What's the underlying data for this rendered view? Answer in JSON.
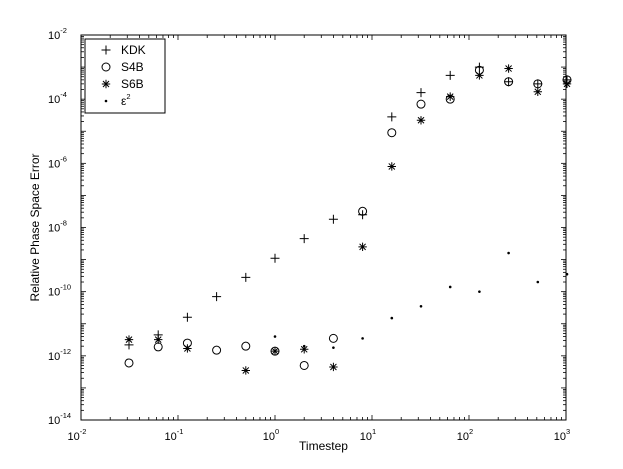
{
  "chart_data": {
    "type": "scatter",
    "title": "",
    "xlabel": "Timestep",
    "ylabel": "Relative Phase Space Error",
    "x_scale": "log",
    "y_scale": "log",
    "xlim": [
      0.01,
      1000
    ],
    "ylim": [
      1e-14,
      0.01
    ],
    "x_ticks": [
      {
        "value": 0.01,
        "base": "10",
        "exp": "-2"
      },
      {
        "value": 0.1,
        "base": "10",
        "exp": "-1"
      },
      {
        "value": 1,
        "base": "10",
        "exp": "0"
      },
      {
        "value": 10,
        "base": "10",
        "exp": "1"
      },
      {
        "value": 100,
        "base": "10",
        "exp": "2"
      },
      {
        "value": 1000,
        "base": "10",
        "exp": "3"
      }
    ],
    "y_ticks": [
      {
        "value": 1e-14,
        "base": "10",
        "exp": "-14"
      },
      {
        "value": 1e-12,
        "base": "10",
        "exp": "-12"
      },
      {
        "value": 1e-10,
        "base": "10",
        "exp": "-10"
      },
      {
        "value": 1e-08,
        "base": "10",
        "exp": "-8"
      },
      {
        "value": 1e-06,
        "base": "10",
        "exp": "-6"
      },
      {
        "value": 0.0001,
        "base": "10",
        "exp": "-4"
      },
      {
        "value": 0.01,
        "base": "10",
        "exp": "-2"
      }
    ],
    "grid": false,
    "legend_position": "top-left",
    "series": [
      {
        "name": "KDK",
        "marker": "plus",
        "x": [
          0.03125,
          0.0625,
          0.125,
          0.25,
          0.5,
          1,
          2,
          4,
          8,
          16,
          32,
          64,
          128,
          256,
          512,
          1024
        ],
        "y": [
          2.2e-12,
          4.5e-12,
          1.6e-11,
          7e-11,
          2.8e-10,
          1.1e-09,
          4.5e-09,
          1.8e-08,
          2.5e-08,
          2.8e-05,
          0.00016,
          0.00055,
          0.001,
          0.00035,
          0.0003,
          0.0004
        ]
      },
      {
        "name": "S4B",
        "marker": "circle",
        "x": [
          0.03125,
          0.0625,
          0.125,
          0.25,
          0.5,
          1,
          2,
          4,
          8,
          16,
          32,
          64,
          128,
          256,
          512,
          1024
        ],
        "y": [
          6e-13,
          1.9e-12,
          2.5e-12,
          1.5e-12,
          2e-12,
          1.4e-12,
          5e-13,
          3.5e-12,
          3.2e-08,
          9e-06,
          7e-05,
          0.0001,
          0.0008,
          0.00035,
          0.0003,
          0.0004
        ]
      },
      {
        "name": "S6B",
        "marker": "asterisk",
        "x": [
          0.03125,
          0.0625,
          0.125,
          0.5,
          1,
          2,
          4,
          8,
          16,
          32,
          64,
          128,
          256,
          512,
          1024
        ],
        "y": [
          3.2e-12,
          3.2e-12,
          1.7e-12,
          3.5e-13,
          1.4e-12,
          1.6e-12,
          4.5e-13,
          2.5e-09,
          8e-07,
          2.2e-05,
          0.00012,
          0.00055,
          0.0009,
          0.00017,
          0.0003
        ]
      },
      {
        "name": "ε",
        "name_exp": "2",
        "marker": "dot",
        "x": [
          1,
          2,
          4,
          8,
          16,
          32,
          64,
          128,
          256,
          512,
          1024
        ],
        "y": [
          4e-12,
          2e-12,
          1.8e-12,
          3.5e-12,
          1.5e-11,
          3.5e-11,
          1.4e-10,
          1e-10,
          1.6e-09,
          2e-10,
          3.5e-10
        ]
      }
    ]
  }
}
